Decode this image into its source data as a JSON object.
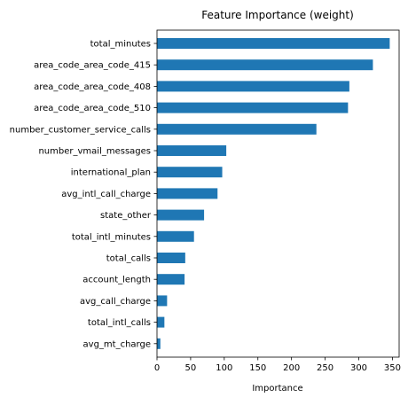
{
  "chart_data": {
    "type": "bar",
    "orientation": "horizontal",
    "title": "Feature Importance (weight)",
    "xlabel": "Importance",
    "ylabel": "",
    "xlim": [
      0,
      360
    ],
    "xticks": [
      0,
      50,
      100,
      150,
      200,
      250,
      300,
      350
    ],
    "grid": false,
    "bar_color": "#1f77b4",
    "categories": [
      "total_minutes",
      "area_code_area_code_415",
      "area_code_area_code_408",
      "area_code_area_code_510",
      "number_customer_service_calls",
      "number_vmail_messages",
      "international_plan",
      "avg_intl_call_charge",
      "state_other",
      "total_intl_minutes",
      "total_calls",
      "account_length",
      "avg_call_charge",
      "total_intl_calls",
      "avg_mt_charge"
    ],
    "values": [
      346,
      321,
      286,
      284,
      237,
      103,
      97,
      90,
      70,
      55,
      42,
      41,
      15,
      11,
      5
    ]
  }
}
